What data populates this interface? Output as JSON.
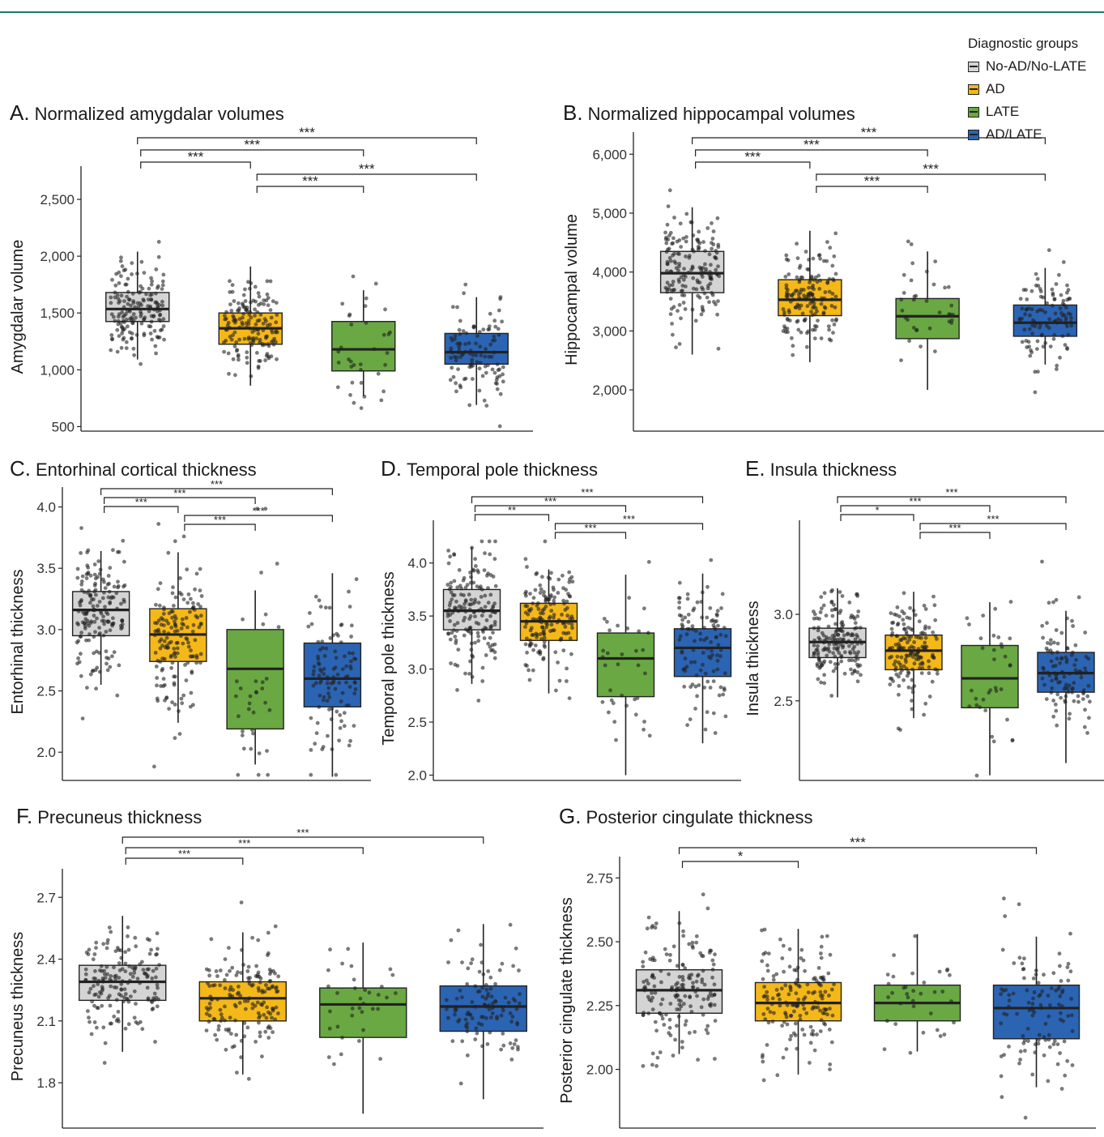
{
  "colors": {
    "No-AD/No-LATE": "#d4d4d4",
    "AD": "#f5b819",
    "LATE": "#6aa843",
    "AD/LATE": "#2b64b3"
  },
  "legend": {
    "title": "Diagnostic groups",
    "items": [
      "No-AD/No-LATE",
      "AD",
      "LATE",
      "AD/LATE"
    ]
  },
  "chart_data": [
    {
      "panel_letter": "A.",
      "title": "Normalized amygdalar volumes",
      "type": "box",
      "ylabel": "Amygdalar volume",
      "ylim": [
        460,
        2650
      ],
      "yticks": [
        500,
        1000,
        1500,
        2000,
        2500
      ],
      "ytick_labels": [
        "500",
        "1,000",
        "1,500",
        "2,000",
        "2,500"
      ],
      "groups": [
        {
          "name": "No-AD/No-LATE",
          "q1": 1425,
          "median": 1535,
          "q3": 1680,
          "whisker_low": 1090,
          "whisker_high": 2040,
          "n_points": 170
        },
        {
          "name": "AD",
          "q1": 1225,
          "median": 1365,
          "q3": 1500,
          "whisker_low": 860,
          "whisker_high": 1910,
          "n_points": 160
        },
        {
          "name": "LATE",
          "q1": 990,
          "median": 1180,
          "q3": 1425,
          "whisker_low": 770,
          "whisker_high": 1700,
          "n_points": 35
        },
        {
          "name": "AD/LATE",
          "q1": 1050,
          "median": 1155,
          "q3": 1320,
          "whisker_low": 690,
          "whisker_high": 1640,
          "n_points": 110
        }
      ],
      "comparisons": [
        {
          "g1": 0,
          "g2": 3,
          "label": "***"
        },
        {
          "g1": 0,
          "g2": 2,
          "label": "***"
        },
        {
          "g1": 0,
          "g2": 1,
          "label": "***"
        },
        {
          "g1": 1,
          "g2": 3,
          "label": "***"
        },
        {
          "g1": 1,
          "g2": 2,
          "label": "***"
        }
      ]
    },
    {
      "panel_letter": "B.",
      "title": "Normalized hippocampal volumes",
      "type": "box",
      "ylabel": "Hippocampal volume",
      "ylim": [
        1300,
        6100
      ],
      "yticks": [
        2000,
        3000,
        4000,
        5000,
        6000
      ],
      "ytick_labels": [
        "2,000",
        "3,000",
        "4,000",
        "5,000",
        "6,000"
      ],
      "groups": [
        {
          "name": "No-AD/No-LATE",
          "q1": 3650,
          "median": 3980,
          "q3": 4350,
          "whisker_low": 2600,
          "whisker_high": 5100,
          "n_points": 170
        },
        {
          "name": "AD",
          "q1": 3260,
          "median": 3530,
          "q3": 3870,
          "whisker_low": 2470,
          "whisker_high": 4700,
          "n_points": 160
        },
        {
          "name": "LATE",
          "q1": 2870,
          "median": 3250,
          "q3": 3550,
          "whisker_low": 2000,
          "whisker_high": 4350,
          "n_points": 35
        },
        {
          "name": "AD/LATE",
          "q1": 2910,
          "median": 3140,
          "q3": 3440,
          "whisker_low": 2430,
          "whisker_high": 4070,
          "n_points": 110
        }
      ],
      "comparisons": [
        {
          "g1": 0,
          "g2": 3,
          "label": "***"
        },
        {
          "g1": 0,
          "g2": 2,
          "label": "***"
        },
        {
          "g1": 0,
          "g2": 1,
          "label": "***"
        },
        {
          "g1": 1,
          "g2": 3,
          "label": "***"
        },
        {
          "g1": 1,
          "g2": 2,
          "label": "***"
        }
      ]
    },
    {
      "panel_letter": "C.",
      "title": "Entorhinal cortical thickness",
      "type": "box",
      "ylabel": "Entorhinal thickness",
      "ylim": [
        1.77,
        4.03
      ],
      "yticks": [
        2.0,
        2.5,
        3.0,
        3.5,
        4.0
      ],
      "ytick_labels": [
        "2.0",
        "2.5",
        "3.0",
        "3.5",
        "4.0"
      ],
      "groups": [
        {
          "name": "No-AD/No-LATE",
          "q1": 2.95,
          "median": 3.16,
          "q3": 3.31,
          "whisker_low": 2.55,
          "whisker_high": 3.64,
          "n_points": 170
        },
        {
          "name": "AD",
          "q1": 2.74,
          "median": 2.96,
          "q3": 3.17,
          "whisker_low": 2.24,
          "whisker_high": 3.63,
          "n_points": 160
        },
        {
          "name": "LATE",
          "q1": 2.19,
          "median": 2.68,
          "q3": 3.0,
          "whisker_low": 1.9,
          "whisker_high": 3.32,
          "n_points": 35
        },
        {
          "name": "AD/LATE",
          "q1": 2.37,
          "median": 2.6,
          "q3": 2.89,
          "whisker_low": 1.8,
          "whisker_high": 3.46,
          "n_points": 110
        }
      ],
      "comparisons": [
        {
          "g1": 0,
          "g2": 3,
          "label": "***"
        },
        {
          "g1": 0,
          "g2": 2,
          "label": "***"
        },
        {
          "g1": 0,
          "g2": 1,
          "label": "***"
        },
        {
          "g1": 1,
          "g2": 3,
          "label": "***"
        },
        {
          "g1": 1,
          "g2": 2,
          "label": "***"
        }
      ]
    },
    {
      "panel_letter": "D.",
      "title": "Temporal pole thickness",
      "type": "box",
      "ylabel": "Temporal pole thickness",
      "ylim": [
        1.95,
        4.25
      ],
      "yticks": [
        2.0,
        2.5,
        3.0,
        3.5,
        4.0
      ],
      "ytick_labels": [
        "2.0",
        "2.5",
        "3.0",
        "3.5",
        "4.0"
      ],
      "groups": [
        {
          "name": "No-AD/No-LATE",
          "q1": 3.37,
          "median": 3.55,
          "q3": 3.75,
          "whisker_low": 2.86,
          "whisker_high": 4.15,
          "n_points": 170
        },
        {
          "name": "AD",
          "q1": 3.27,
          "median": 3.45,
          "q3": 3.62,
          "whisker_low": 2.77,
          "whisker_high": 3.94,
          "n_points": 160
        },
        {
          "name": "LATE",
          "q1": 2.74,
          "median": 3.1,
          "q3": 3.34,
          "whisker_low": 2.0,
          "whisker_high": 3.89,
          "n_points": 35
        },
        {
          "name": "AD/LATE",
          "q1": 2.93,
          "median": 3.2,
          "q3": 3.38,
          "whisker_low": 2.3,
          "whisker_high": 3.9,
          "n_points": 110
        }
      ],
      "comparisons": [
        {
          "g1": 0,
          "g2": 3,
          "label": "***"
        },
        {
          "g1": 0,
          "g2": 2,
          "label": "***"
        },
        {
          "g1": 0,
          "g2": 1,
          "label": "**"
        },
        {
          "g1": 1,
          "g2": 3,
          "label": "***"
        },
        {
          "g1": 1,
          "g2": 2,
          "label": "***"
        }
      ]
    },
    {
      "panel_letter": "E.",
      "title": "Insula thickness",
      "type": "box",
      "ylabel": "Insula thickness",
      "ylim": [
        2.04,
        3.45
      ],
      "yticks": [
        2.5,
        3.0
      ],
      "ytick_labels": [
        "2.5",
        "3.0"
      ],
      "groups": [
        {
          "name": "No-AD/No-LATE",
          "q1": 2.75,
          "median": 2.84,
          "q3": 2.92,
          "whisker_low": 2.52,
          "whisker_high": 3.15,
          "n_points": 170
        },
        {
          "name": "AD",
          "q1": 2.68,
          "median": 2.79,
          "q3": 2.88,
          "whisker_low": 2.4,
          "whisker_high": 3.13,
          "n_points": 160
        },
        {
          "name": "LATE",
          "q1": 2.46,
          "median": 2.63,
          "q3": 2.82,
          "whisker_low": 2.07,
          "whisker_high": 3.07,
          "n_points": 35
        },
        {
          "name": "AD/LATE",
          "q1": 2.55,
          "median": 2.66,
          "q3": 2.78,
          "whisker_low": 2.14,
          "whisker_high": 3.02,
          "n_points": 110
        }
      ],
      "comparisons": [
        {
          "g1": 0,
          "g2": 3,
          "label": "***"
        },
        {
          "g1": 0,
          "g2": 2,
          "label": "***"
        },
        {
          "g1": 0,
          "g2": 1,
          "label": "*"
        },
        {
          "g1": 1,
          "g2": 3,
          "label": "***"
        },
        {
          "g1": 1,
          "g2": 2,
          "label": "***"
        }
      ]
    },
    {
      "panel_letter": "F.",
      "title": "Precuneus thickness",
      "type": "box",
      "ylabel": "Precuneus thickness",
      "ylim": [
        1.58,
        2.76
      ],
      "yticks": [
        1.8,
        2.1,
        2.4,
        2.7
      ],
      "ytick_labels": [
        "1.8",
        "2.1",
        "2.4",
        "2.7"
      ],
      "groups": [
        {
          "name": "No-AD/No-LATE",
          "q1": 2.2,
          "median": 2.29,
          "q3": 2.37,
          "whisker_low": 1.95,
          "whisker_high": 2.61,
          "n_points": 170
        },
        {
          "name": "AD",
          "q1": 2.1,
          "median": 2.21,
          "q3": 2.29,
          "whisker_low": 1.84,
          "whisker_high": 2.53,
          "n_points": 160
        },
        {
          "name": "LATE",
          "q1": 2.02,
          "median": 2.18,
          "q3": 2.26,
          "whisker_low": 1.65,
          "whisker_high": 2.48,
          "n_points": 35
        },
        {
          "name": "AD/LATE",
          "q1": 2.05,
          "median": 2.17,
          "q3": 2.27,
          "whisker_low": 1.72,
          "whisker_high": 2.57,
          "n_points": 110
        }
      ],
      "comparisons": [
        {
          "g1": 0,
          "g2": 3,
          "label": "***"
        },
        {
          "g1": 0,
          "g2": 2,
          "label": "***"
        },
        {
          "g1": 0,
          "g2": 1,
          "label": "***"
        }
      ]
    },
    {
      "panel_letter": "G.",
      "title": "Posterior cingulate thickness",
      "type": "box",
      "ylabel": "Posterior cingulate thickness",
      "ylim": [
        1.77,
        2.77
      ],
      "yticks": [
        2.0,
        2.25,
        2.5,
        2.75
      ],
      "ytick_labels": [
        "2.00",
        "2.25",
        "2.50",
        "2.75"
      ],
      "groups": [
        {
          "name": "No-AD/No-LATE",
          "q1": 2.22,
          "median": 2.31,
          "q3": 2.39,
          "whisker_low": 2.06,
          "whisker_high": 2.62,
          "n_points": 170
        },
        {
          "name": "AD",
          "q1": 2.19,
          "median": 2.26,
          "q3": 2.34,
          "whisker_low": 1.98,
          "whisker_high": 2.55,
          "n_points": 160
        },
        {
          "name": "LATE",
          "q1": 2.19,
          "median": 2.26,
          "q3": 2.33,
          "whisker_low": 2.07,
          "whisker_high": 2.53,
          "n_points": 35
        },
        {
          "name": "AD/LATE",
          "q1": 2.12,
          "median": 2.24,
          "q3": 2.33,
          "whisker_low": 1.93,
          "whisker_high": 2.52,
          "n_points": 110
        }
      ],
      "comparisons": [
        {
          "g1": 0,
          "g2": 3,
          "label": "***"
        },
        {
          "g1": 0,
          "g2": 1,
          "label": "*"
        }
      ]
    }
  ]
}
